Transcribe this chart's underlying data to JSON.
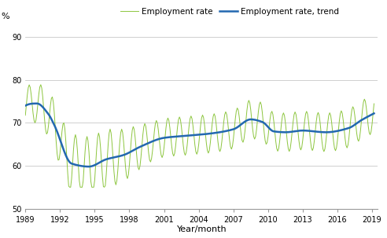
{
  "ylabel": "%",
  "xlabel": "Year/month",
  "legend_labels": [
    "Employment rate",
    "Employment rate, trend"
  ],
  "line_colors": [
    "#8dc63f",
    "#2368b0"
  ],
  "ylim": [
    50,
    93
  ],
  "yticks": [
    50,
    60,
    70,
    80,
    90
  ],
  "xtick_years": [
    1989,
    1992,
    1995,
    1998,
    2001,
    2004,
    2007,
    2010,
    2013,
    2016,
    2019
  ],
  "grid_color": "#c8c8c8",
  "background_color": "#ffffff",
  "figsize": [
    4.92,
    3.03
  ],
  "dpi": 100
}
